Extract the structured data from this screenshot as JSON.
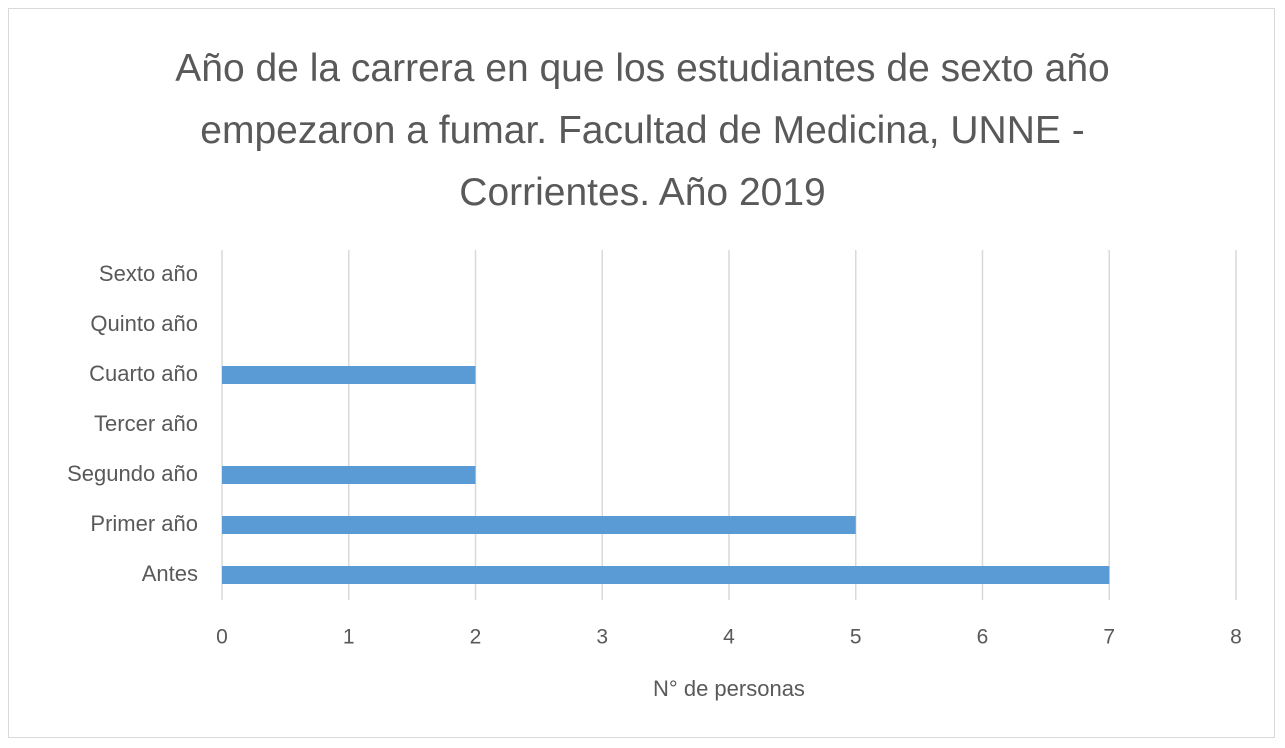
{
  "chart_data": {
    "type": "barh",
    "title": "Año de la carrera en que los estudiantes de sexto año empezaron a fumar. Facultad de Medicina, UNNE - Corrientes. Año 2019",
    "x_label": "N° de personas",
    "categories": [
      "Antes",
      "Primer año",
      "Segundo año",
      "Tercer año",
      "Cuarto año",
      "Quinto año",
      "Sexto año"
    ],
    "values": [
      7,
      5,
      2,
      0,
      2,
      0,
      0
    ],
    "color": "#5b9bd5",
    "xlim": [
      0,
      8
    ],
    "xticks": [
      0,
      1,
      2,
      3,
      4,
      5,
      6,
      7,
      8
    ],
    "grid": true
  }
}
